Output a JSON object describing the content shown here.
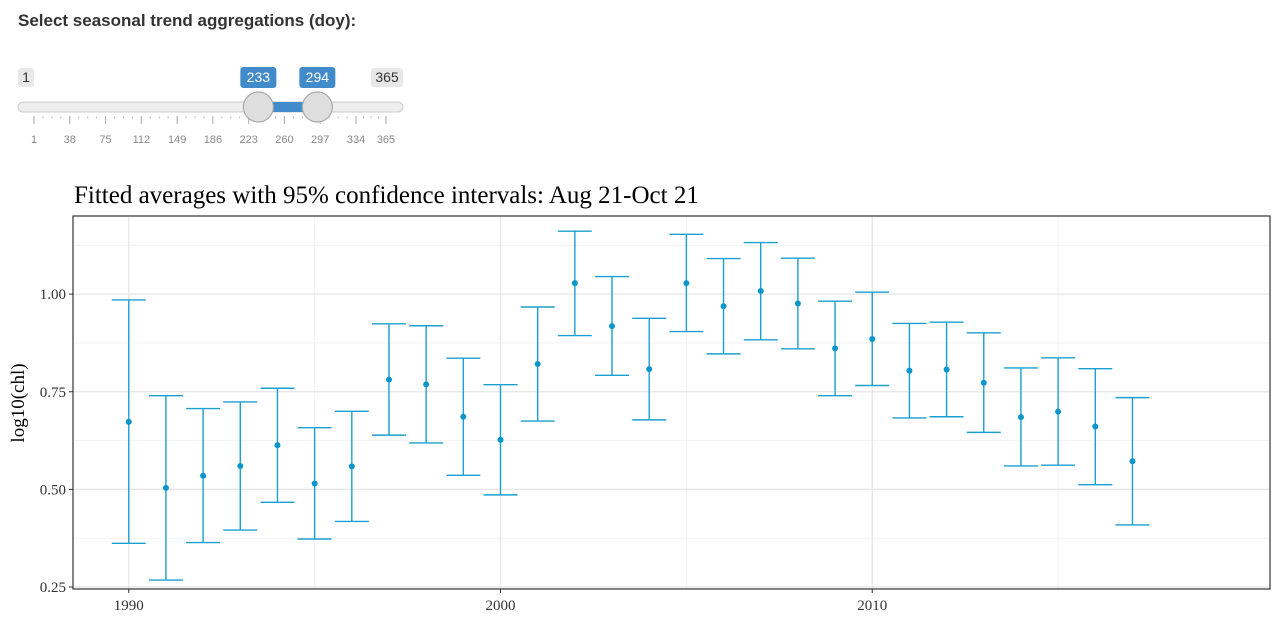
{
  "slider": {
    "label": "Select seasonal trend aggregations (doy):",
    "min": 1,
    "max": 365,
    "min_label": "1",
    "max_label": "365",
    "from": 233,
    "to": 294,
    "from_label": "233",
    "to_label": "294",
    "grid_labels": [
      "1",
      "38",
      "75",
      "112",
      "149",
      "186",
      "223",
      "260",
      "297",
      "334",
      "365"
    ],
    "colors": {
      "accent": "#428bca",
      "track": "#eeeeee",
      "handle": "#dedede",
      "minmax_bg": "#e8e8e8"
    }
  },
  "chart_data": {
    "type": "errorbar",
    "title": "Fitted averages with 95% confidence intervals: Aug 21-Oct 21",
    "xlabel": "",
    "ylabel": "log10(chl)",
    "xlim": [
      1988.5,
      2020.7
    ],
    "ylim": [
      0.245,
      1.2
    ],
    "x_ticks": [
      1990,
      2000,
      2010
    ],
    "y_ticks": [
      0.25,
      0.5,
      0.75,
      1.0
    ],
    "y_tick_labels": [
      "0.25",
      "0.50",
      "0.75",
      "1.00"
    ],
    "grid": true,
    "color": "#1a9fd1",
    "points": [
      {
        "x": 1990,
        "y": 0.673,
        "lo": 0.362,
        "hi": 0.985
      },
      {
        "x": 1991,
        "y": 0.504,
        "lo": 0.268,
        "hi": 0.74
      },
      {
        "x": 1992,
        "y": 0.535,
        "lo": 0.364,
        "hi": 0.707
      },
      {
        "x": 1993,
        "y": 0.56,
        "lo": 0.396,
        "hi": 0.724
      },
      {
        "x": 1994,
        "y": 0.613,
        "lo": 0.467,
        "hi": 0.759
      },
      {
        "x": 1995,
        "y": 0.515,
        "lo": 0.373,
        "hi": 0.658
      },
      {
        "x": 1996,
        "y": 0.559,
        "lo": 0.418,
        "hi": 0.7
      },
      {
        "x": 1997,
        "y": 0.781,
        "lo": 0.639,
        "hi": 0.924
      },
      {
        "x": 1998,
        "y": 0.769,
        "lo": 0.619,
        "hi": 0.919
      },
      {
        "x": 1999,
        "y": 0.686,
        "lo": 0.536,
        "hi": 0.836
      },
      {
        "x": 2000,
        "y": 0.627,
        "lo": 0.486,
        "hi": 0.768
      },
      {
        "x": 2001,
        "y": 0.821,
        "lo": 0.675,
        "hi": 0.967
      },
      {
        "x": 2002,
        "y": 1.028,
        "lo": 0.894,
        "hi": 1.161
      },
      {
        "x": 2003,
        "y": 0.918,
        "lo": 0.792,
        "hi": 1.045
      },
      {
        "x": 2004,
        "y": 0.808,
        "lo": 0.678,
        "hi": 0.938
      },
      {
        "x": 2005,
        "y": 1.028,
        "lo": 0.904,
        "hi": 1.153
      },
      {
        "x": 2006,
        "y": 0.969,
        "lo": 0.847,
        "hi": 1.091
      },
      {
        "x": 2007,
        "y": 1.008,
        "lo": 0.883,
        "hi": 1.132
      },
      {
        "x": 2008,
        "y": 0.976,
        "lo": 0.86,
        "hi": 1.092
      },
      {
        "x": 2009,
        "y": 0.861,
        "lo": 0.74,
        "hi": 0.982
      },
      {
        "x": 2010,
        "y": 0.885,
        "lo": 0.766,
        "hi": 1.005
      },
      {
        "x": 2011,
        "y": 0.804,
        "lo": 0.683,
        "hi": 0.925
      },
      {
        "x": 2012,
        "y": 0.807,
        "lo": 0.686,
        "hi": 0.928
      },
      {
        "x": 2013,
        "y": 0.773,
        "lo": 0.646,
        "hi": 0.901
      },
      {
        "x": 2014,
        "y": 0.685,
        "lo": 0.56,
        "hi": 0.811
      },
      {
        "x": 2015,
        "y": 0.699,
        "lo": 0.562,
        "hi": 0.837
      },
      {
        "x": 2016,
        "y": 0.661,
        "lo": 0.512,
        "hi": 0.809
      },
      {
        "x": 2017,
        "y": 0.572,
        "lo": 0.409,
        "hi": 0.735
      }
    ]
  }
}
